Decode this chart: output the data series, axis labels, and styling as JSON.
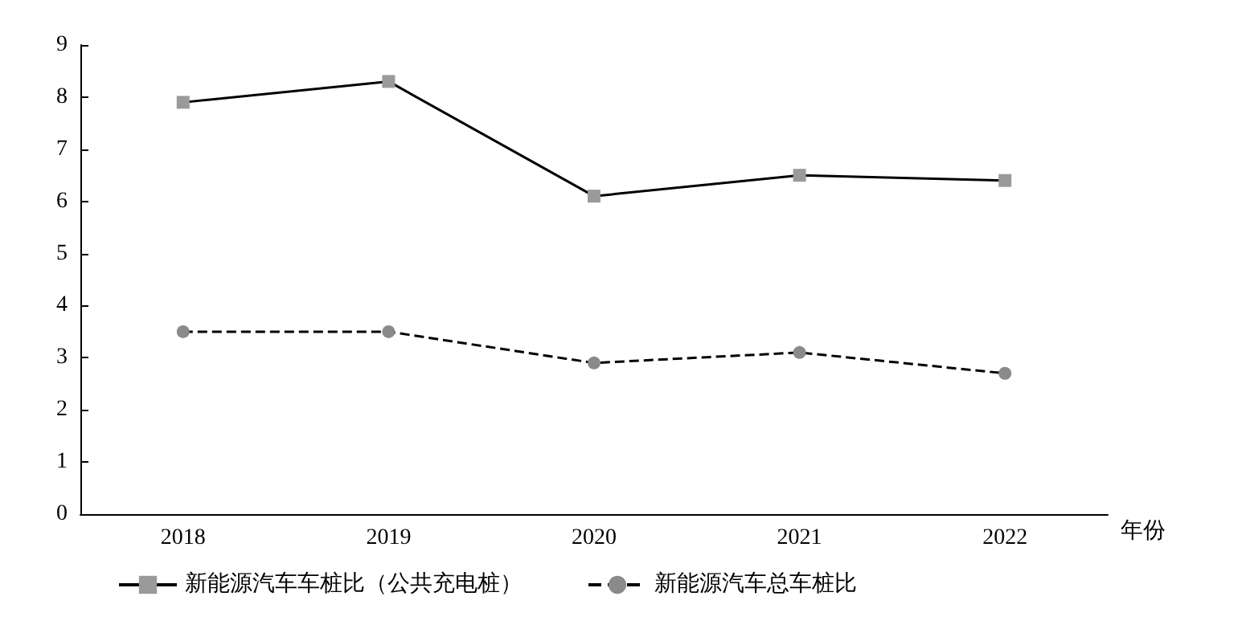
{
  "chart_data": {
    "type": "line",
    "xlabel": "年份",
    "categories": [
      "2018",
      "2019",
      "2020",
      "2021",
      "2022"
    ],
    "series": [
      {
        "name": "新能源汽车车桩比（公共充电桩）",
        "color": "#9a9a9a",
        "values": [
          7.9,
          8.3,
          6.1,
          6.5,
          6.4
        ],
        "marker": "square",
        "line_style": "solid"
      },
      {
        "name": "新能源汽车总车桩比",
        "color": "#8a8a8a",
        "values": [
          3.5,
          3.5,
          2.9,
          3.1,
          2.7
        ],
        "marker": "circle",
        "line_style": "dashed"
      }
    ],
    "ylim": [
      0,
      9
    ],
    "yticks": [
      0,
      1,
      2,
      3,
      4,
      5,
      6,
      7,
      8,
      9
    ],
    "grid": false,
    "legend": "bottom"
  }
}
